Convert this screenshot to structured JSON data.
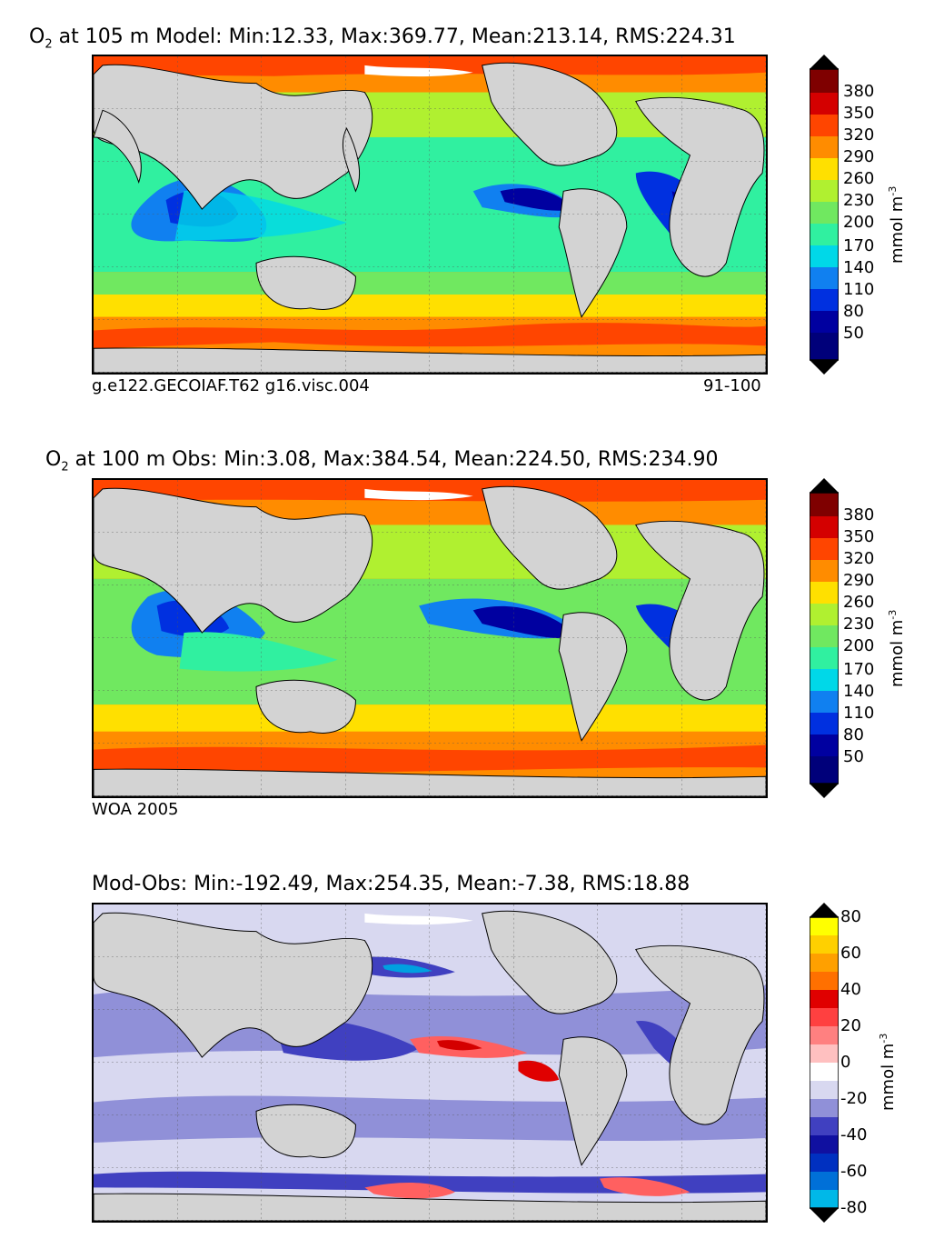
{
  "panels": [
    {
      "id": "model",
      "title_prefix": "O",
      "title_sub": "2",
      "title_rest": " at 105 m Model: Min:12.33, Max:369.77, Mean:213.14, RMS:224.31",
      "caption_left": "g.e122.GECOIAF.T62 g16.visc.004",
      "caption_right": "91-100",
      "colorbar_ticks": [
        "380",
        "350",
        "320",
        "290",
        "260",
        "230",
        "200",
        "170",
        "140",
        "110",
        "80",
        "50"
      ],
      "unit_label": "mmol m",
      "unit_exp": "-3"
    },
    {
      "id": "obs",
      "title_prefix": "O",
      "title_sub": "2",
      "title_rest": " at 100 m Obs: Min:3.08, Max:384.54, Mean:224.50, RMS:234.90",
      "caption_left": "WOA 2005",
      "caption_right": "",
      "colorbar_ticks": [
        "380",
        "350",
        "320",
        "290",
        "260",
        "230",
        "200",
        "170",
        "140",
        "110",
        "80",
        "50"
      ],
      "unit_label": "mmol m",
      "unit_exp": "-3"
    },
    {
      "id": "diff",
      "title_prefix": "",
      "title_sub": "",
      "title_rest": "Mod-Obs: Min:-192.49, Max:254.35, Mean:-7.38, RMS:18.88",
      "caption_left": "",
      "caption_right": "",
      "colorbar_ticks": [
        "80",
        "60",
        "40",
        "20",
        "0",
        "-20",
        "-40",
        "-60",
        "-80"
      ],
      "unit_label": "mmol m",
      "unit_exp": "-3"
    }
  ],
  "colors": {
    "land": "#d3d3d3",
    "o2_scale": [
      "#7f0000",
      "#d40000",
      "#ff4500",
      "#ff8c00",
      "#ffe000",
      "#b0f030",
      "#70e860",
      "#30f0a0",
      "#00d8e8",
      "#1080f0",
      "#0030e0",
      "#0000a0",
      "#00007a"
    ],
    "diff_scale": [
      "#ffff00",
      "#ffa000",
      "#ff5000",
      "#e00000",
      "#ff6060",
      "#ffb0b0",
      "#ffffff",
      "#d8d8f0",
      "#9090d8",
      "#4040c0",
      "#1010a0",
      "#0050d0",
      "#00a0e0",
      "#00e8f0"
    ]
  }
}
